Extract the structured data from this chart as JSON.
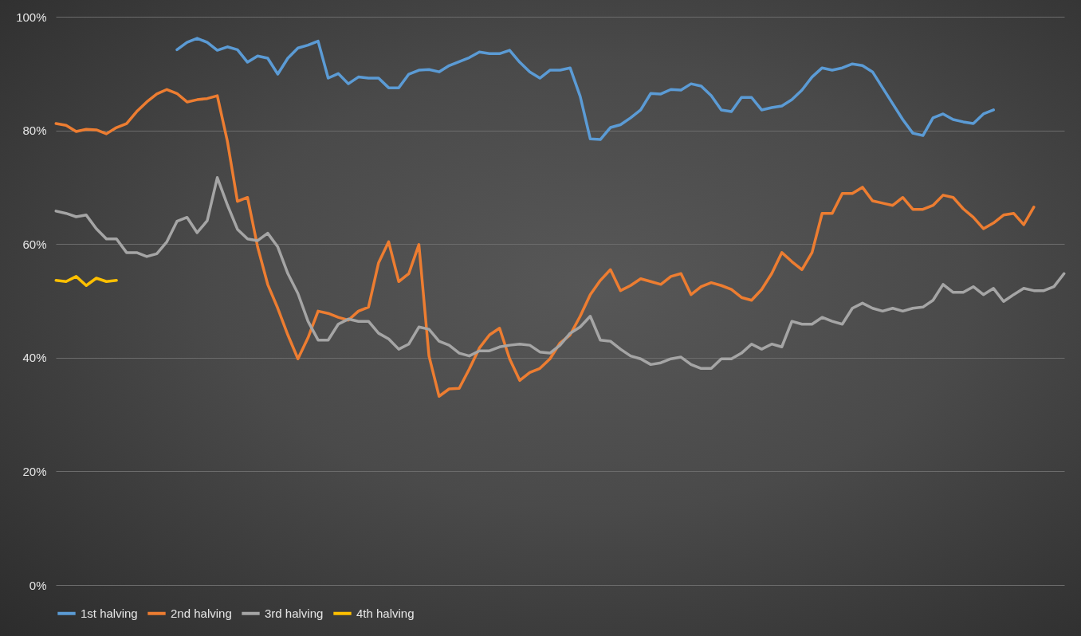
{
  "chart_data": {
    "type": "line",
    "categories": [
      null,
      null,
      null,
      null,
      null,
      null,
      null,
      null,
      null,
      null,
      null,
      null,
      null,
      null,
      null,
      null,
      null,
      null,
      null,
      null,
      null,
      null,
      null,
      null,
      null,
      null,
      null,
      null,
      null,
      null,
      null,
      null,
      null,
      null,
      null,
      null,
      null,
      null,
      null,
      null,
      null,
      null,
      null,
      null,
      null,
      null,
      null,
      null,
      null,
      null,
      null,
      null,
      null,
      null,
      null,
      null,
      null,
      null,
      null,
      null,
      null,
      null,
      null,
      null,
      null,
      null,
      null,
      null,
      null,
      null,
      null,
      null,
      null,
      null,
      null,
      null,
      null,
      null,
      null,
      null,
      null,
      null,
      null,
      null,
      null,
      null,
      null,
      null,
      null,
      null,
      null,
      null,
      null,
      null,
      null,
      null,
      null,
      null,
      null,
      null,
      null
    ],
    "series": [
      {
        "name": "1st halving",
        "color": "#5b9bd5",
        "values": [
          null,
          null,
          null,
          null,
          null,
          null,
          null,
          null,
          null,
          null,
          null,
          null,
          94.2,
          95.5,
          96.2,
          95.5,
          94.1,
          94.7,
          94.2,
          92.0,
          93.1,
          92.7,
          89.9,
          92.7,
          94.5,
          95.0,
          95.7,
          89.2,
          90.0,
          88.2,
          89.4,
          89.2,
          89.2,
          87.5,
          87.5,
          89.9,
          90.6,
          90.7,
          90.3,
          91.4,
          92.1,
          92.8,
          93.8,
          93.5,
          93.5,
          94.1,
          92.0,
          90.3,
          89.2,
          90.6,
          90.6,
          91.0,
          86.0,
          78.5,
          78.4,
          80.5,
          81.0,
          82.2,
          83.6,
          86.5,
          86.4,
          87.2,
          87.1,
          88.2,
          87.8,
          86.1,
          83.6,
          83.3,
          85.8,
          85.8,
          83.6,
          84.0,
          84.3,
          85.4,
          87.1,
          89.4,
          91.0,
          90.6,
          91.0,
          91.7,
          91.4,
          90.3,
          87.5,
          84.7,
          81.9,
          79.5,
          79.1,
          82.2,
          82.9,
          81.9,
          81.5,
          81.2,
          82.9,
          83.6,
          null,
          null,
          null,
          null,
          null,
          null,
          null
        ]
      },
      {
        "name": "2nd halving",
        "color": "#ed7d31",
        "values": [
          81.2,
          80.9,
          79.8,
          80.2,
          80.1,
          79.4,
          80.5,
          81.2,
          83.3,
          85.0,
          86.4,
          87.2,
          86.5,
          85.0,
          85.4,
          85.6,
          86.1,
          78.1,
          67.5,
          68.2,
          59.5,
          52.9,
          48.7,
          44.0,
          39.8,
          43.5,
          48.2,
          47.8,
          47.1,
          46.6,
          48.2,
          48.9,
          56.7,
          60.4,
          53.4,
          54.8,
          59.9,
          40.3,
          33.2,
          34.5,
          34.6,
          38.0,
          41.7,
          44.0,
          45.2,
          39.8,
          36.0,
          37.4,
          38.1,
          39.8,
          42.6,
          44.0,
          47.3,
          51.1,
          53.6,
          55.5,
          51.8,
          52.7,
          53.9,
          53.4,
          52.9,
          54.3,
          54.8,
          51.1,
          52.5,
          53.2,
          52.7,
          52.0,
          50.6,
          50.1,
          52.0,
          54.8,
          58.5,
          56.9,
          55.5,
          58.5,
          65.4,
          65.4,
          68.9,
          68.9,
          70.0,
          67.6,
          67.2,
          66.8,
          68.2,
          66.1,
          66.1,
          66.8,
          68.6,
          68.2,
          66.2,
          64.7,
          62.7,
          63.7,
          65.1,
          65.4,
          63.4,
          66.5,
          null,
          null,
          null
        ]
      },
      {
        "name": "3rd halving",
        "color": "#a5a5a5",
        "values": [
          65.8,
          65.4,
          64.8,
          65.1,
          62.7,
          60.9,
          60.9,
          58.5,
          58.5,
          57.8,
          58.3,
          60.4,
          64.0,
          64.7,
          62.0,
          64.1,
          71.7,
          66.9,
          62.6,
          60.9,
          60.6,
          61.9,
          59.5,
          54.8,
          51.3,
          46.4,
          43.1,
          43.1,
          45.9,
          46.8,
          46.4,
          46.4,
          44.3,
          43.3,
          41.5,
          42.4,
          45.4,
          45.0,
          42.9,
          42.2,
          40.8,
          40.3,
          41.2,
          41.2,
          41.9,
          42.2,
          42.4,
          42.2,
          41.0,
          40.8,
          42.2,
          44.3,
          45.4,
          47.3,
          43.1,
          42.9,
          41.5,
          40.3,
          39.8,
          38.8,
          39.1,
          39.8,
          40.1,
          38.8,
          38.1,
          38.1,
          39.8,
          39.8,
          40.8,
          42.4,
          41.5,
          42.4,
          41.9,
          46.4,
          45.9,
          45.9,
          47.1,
          46.4,
          45.9,
          48.7,
          49.6,
          48.7,
          48.2,
          48.7,
          48.2,
          48.7,
          48.9,
          50.1,
          52.9,
          51.5,
          51.5,
          52.5,
          51.1,
          52.2,
          49.9,
          51.1,
          52.2,
          51.8,
          51.8,
          52.5,
          54.8
        ]
      },
      {
        "name": "4th halving",
        "color": "#ffc000",
        "values": [
          53.6,
          53.4,
          54.3,
          52.7,
          54.0,
          53.4,
          53.6,
          null,
          null,
          null,
          null,
          null,
          null,
          null,
          null,
          null,
          null,
          null,
          null,
          null,
          null,
          null,
          null,
          null,
          null,
          null,
          null,
          null,
          null,
          null,
          null,
          null,
          null,
          null,
          null,
          null,
          null,
          null,
          null,
          null,
          null,
          null,
          null,
          null,
          null,
          null,
          null,
          null,
          null,
          null,
          null,
          null,
          null,
          null,
          null,
          null,
          null,
          null,
          null,
          null,
          null,
          null,
          null,
          null,
          null,
          null,
          null,
          null,
          null,
          null,
          null,
          null,
          null,
          null,
          null,
          null,
          null,
          null,
          null,
          null,
          null,
          null,
          null,
          null,
          null,
          null,
          null,
          null,
          null,
          null,
          null,
          null,
          null,
          null,
          null,
          null,
          null,
          null,
          null,
          null,
          null
        ]
      }
    ],
    "ylim": [
      0,
      100
    ],
    "yticks": [
      {
        "value": 0,
        "label": "0%"
      },
      {
        "value": 20,
        "label": "20%"
      },
      {
        "value": 40,
        "label": "40%"
      },
      {
        "value": 60,
        "label": "60%"
      },
      {
        "value": 80,
        "label": "80%"
      },
      {
        "value": 100,
        "label": "100%"
      }
    ],
    "grid": "y",
    "legend": "bottom",
    "tick_labels": "y",
    "line_style": "solid"
  }
}
